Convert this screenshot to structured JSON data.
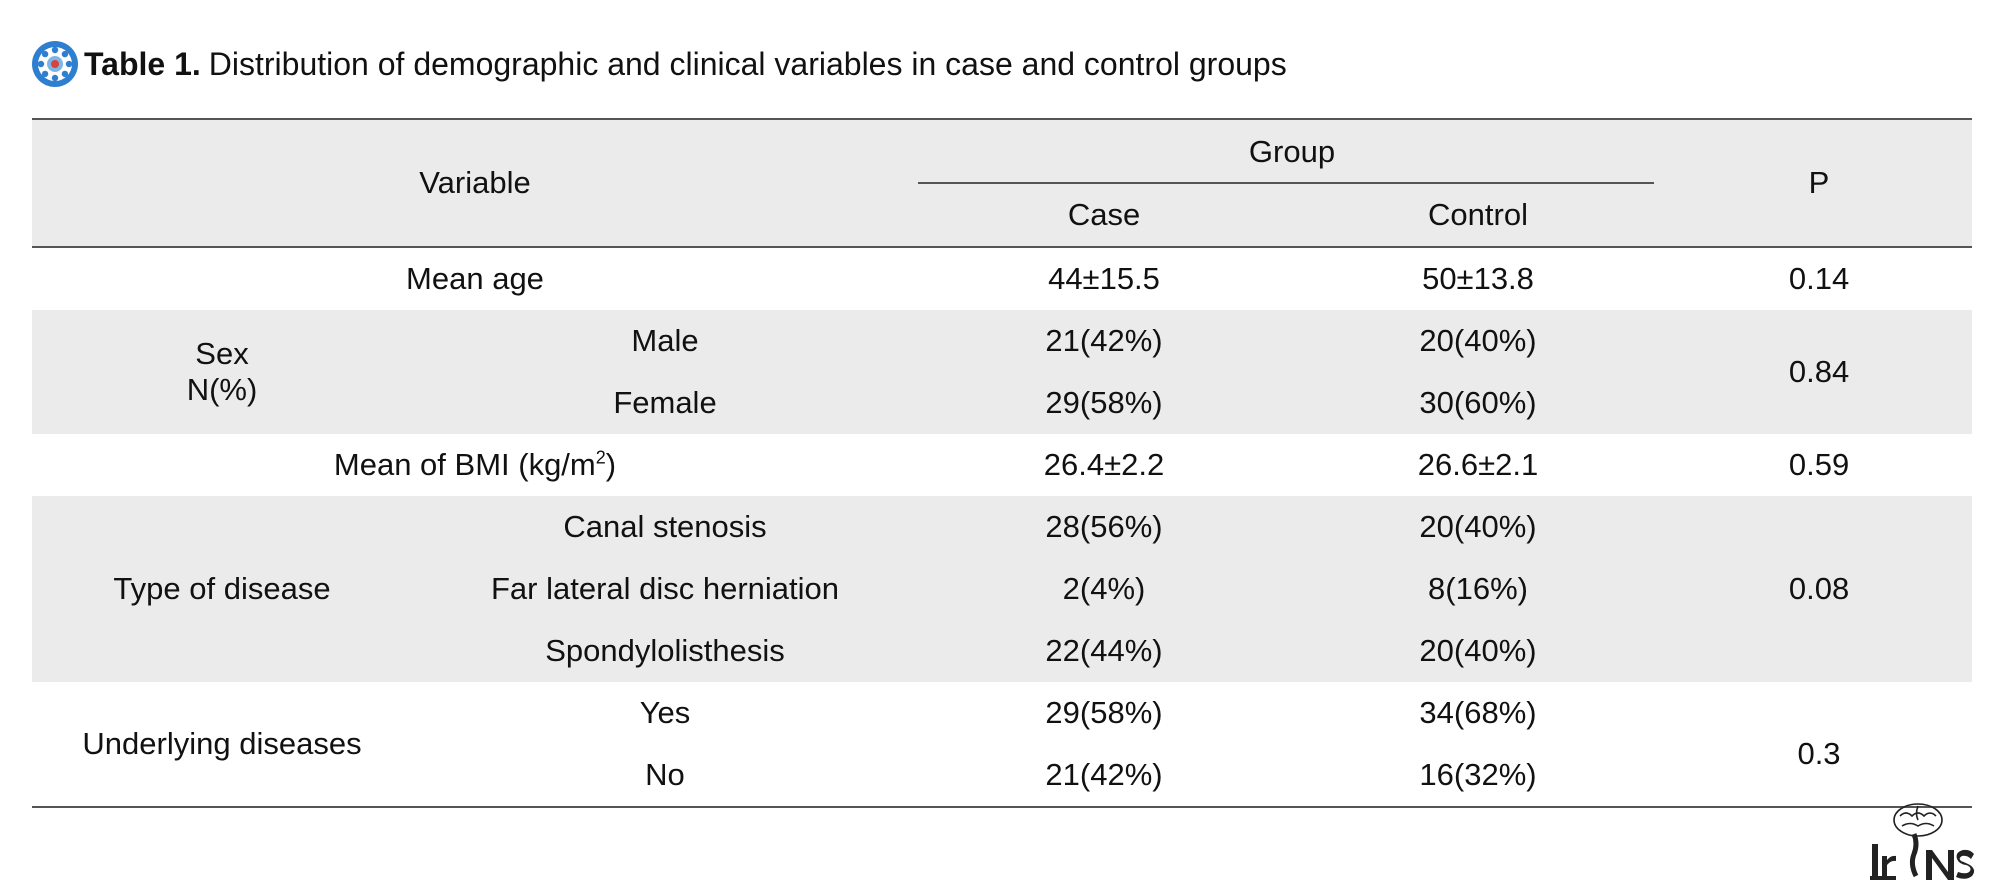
{
  "caption": {
    "label": "Table 1.",
    "text": "Distribution of demographic and clinical variables in case and control groups",
    "icon": "rosette-icon",
    "icon_color": "#2f7fd1"
  },
  "table": {
    "headers": {
      "variable": "Variable",
      "group": "Group",
      "case": "Case",
      "control": "Control",
      "p": "P"
    },
    "mean_age": {
      "label": "Mean age",
      "case": "44±15.5",
      "control": "50±13.8",
      "p": "0.14"
    },
    "sex": {
      "label_line1": "Sex",
      "label_line2": "N(%)",
      "male": {
        "label": "Male",
        "case": "21(42%)",
        "control": "20(40%)"
      },
      "female": {
        "label": "Female",
        "case": "29(58%)",
        "control": "30(60%)"
      },
      "p": "0.84"
    },
    "bmi": {
      "label": "Mean of BMI (kg/m",
      "sup": "2",
      "label_end": ")",
      "case": "26.4±2.2",
      "control": "26.6±2.1",
      "p": "0.59"
    },
    "disease": {
      "label": "Type of disease",
      "canal": {
        "label": "Canal stenosis",
        "case": "28(56%)",
        "control": "20(40%)"
      },
      "far": {
        "label": "Far lateral disc herniation",
        "case": "2(4%)",
        "control": "8(16%)"
      },
      "spondy": {
        "label": "Spondylolisthesis",
        "case": "22(44%)",
        "control": "20(40%)"
      },
      "p": "0.08"
    },
    "underlying": {
      "label": "Underlying diseases",
      "yes": {
        "label": "Yes",
        "case": "29(58%)",
        "control": "34(68%)"
      },
      "no": {
        "label": "No",
        "case": "21(42%)",
        "control": "16(32%)"
      },
      "p": "0.3"
    },
    "shade_color": "#ebebeb"
  },
  "logo": {
    "text": "IrNS",
    "icon": "brain-spine-logo-icon"
  }
}
